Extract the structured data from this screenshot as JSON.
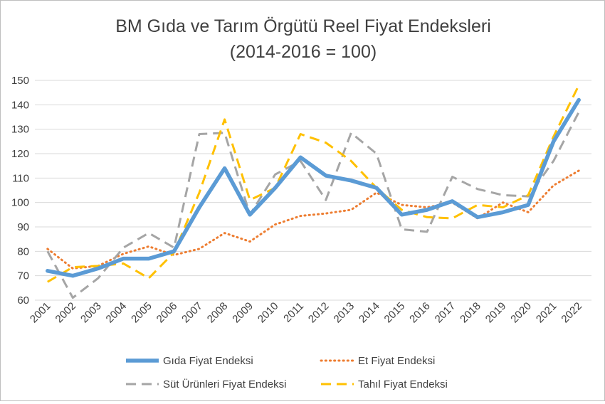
{
  "chart_data": {
    "type": "line",
    "title": "BM Gıda ve Tarım Örgütü Reel Fiyat Endeksleri",
    "subtitle": "(2014-2016 = 100)",
    "xlabel": "",
    "ylabel": "",
    "ylim": [
      60,
      150
    ],
    "yticks": [
      "60",
      "70",
      "80",
      "90",
      "100",
      "110",
      "120",
      "130",
      "140",
      "150"
    ],
    "grid": true,
    "legend_position": "bottom",
    "categories": [
      "2001",
      "2002",
      "2003",
      "2004",
      "2005",
      "2006",
      "2007",
      "2008",
      "2009",
      "2010",
      "2011",
      "2012",
      "2013",
      "2014",
      "2015",
      "2016",
      "2017",
      "2018",
      "2019",
      "2020",
      "2021",
      "2022"
    ],
    "series": [
      {
        "name": "Gıda Fiyat Endeksi",
        "style": "solid",
        "color": "#5b9bd5",
        "values": [
          72,
          70,
          73,
          77,
          77,
          80,
          98,
          114,
          95,
          106,
          118.5,
          111,
          109,
          106,
          95,
          97,
          100.5,
          94,
          96,
          99,
          125,
          142
        ]
      },
      {
        "name": "Et Fiyat Endeksi",
        "style": "dotted",
        "color": "#ed7d31",
        "values": [
          81,
          73,
          74,
          79,
          82,
          78.5,
          81,
          87.5,
          84,
          91,
          94.5,
          95.5,
          97,
          104,
          99,
          98,
          100,
          93.5,
          100,
          96,
          107,
          113
        ]
      },
      {
        "name": "Süt Ürünleri Fiyat Endeksi",
        "style": "dashed",
        "color": "#a5a5a5",
        "values": [
          80,
          61,
          69,
          81.5,
          87.5,
          81.5,
          128,
          128.5,
          95,
          111.5,
          117,
          101,
          128.5,
          120,
          89,
          88,
          110.5,
          105.5,
          103,
          102.5,
          117,
          137
        ]
      },
      {
        "name": "Tahıl Fiyat Endeksi",
        "style": "dashed",
        "color": "#ffc000",
        "values": [
          67.5,
          73.5,
          74,
          75,
          69,
          79.5,
          104,
          134,
          101,
          106,
          128,
          124.5,
          117,
          106,
          97,
          94,
          93.5,
          99,
          98,
          103,
          127,
          148
        ]
      }
    ]
  }
}
